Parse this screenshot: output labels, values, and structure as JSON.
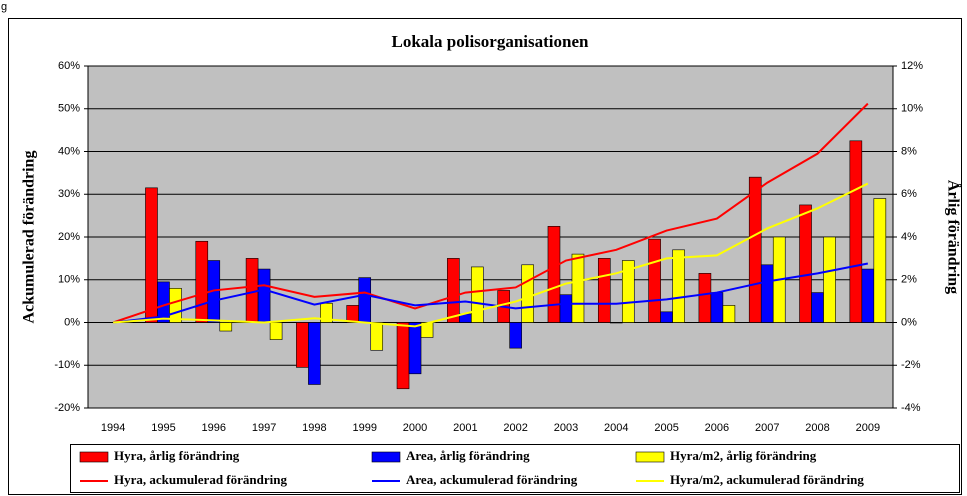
{
  "fragment": "g",
  "chart_data": {
    "type": "combo",
    "title": "Lokala polisorganisationen",
    "ylabel": "Ackumulerad förändring",
    "y2label": "Årlig förändring",
    "categories": [
      "1994",
      "1995",
      "1996",
      "1997",
      "1998",
      "1999",
      "2000",
      "2001",
      "2002",
      "2003",
      "2004",
      "2005",
      "2006",
      "2007",
      "2008",
      "2009"
    ],
    "ylim": [
      -20,
      60
    ],
    "yticks": [
      {
        "value": -20,
        "label": "-20%"
      },
      {
        "value": -10,
        "label": "-10%"
      },
      {
        "value": 0,
        "label": "0%"
      },
      {
        "value": 10,
        "label": "10%"
      },
      {
        "value": 20,
        "label": "20%"
      },
      {
        "value": 30,
        "label": "30%"
      },
      {
        "value": 40,
        "label": "40%"
      },
      {
        "value": 50,
        "label": "50%"
      },
      {
        "value": 60,
        "label": "60%"
      }
    ],
    "y2lim": [
      -4,
      12
    ],
    "y2ticks": [
      {
        "value": -4,
        "label": "-4%"
      },
      {
        "value": -2,
        "label": "-2%"
      },
      {
        "value": 0,
        "label": "0%"
      },
      {
        "value": 2,
        "label": "2%"
      },
      {
        "value": 4,
        "label": "4%"
      },
      {
        "value": 6,
        "label": "6%"
      },
      {
        "value": 8,
        "label": "8%"
      },
      {
        "value": 10,
        "label": "10%"
      },
      {
        "value": 12,
        "label": "12%"
      }
    ],
    "grid": true,
    "legend": "bottom",
    "series": [
      {
        "name": "Hyra, årlig förändring",
        "type": "bar",
        "axis": "y2",
        "color": "#ff0000",
        "values": [
          null,
          6.3,
          3.8,
          3.0,
          -2.1,
          0.8,
          -3.1,
          3.0,
          1.5,
          4.5,
          3.0,
          3.9,
          2.3,
          6.8,
          5.5,
          8.5
        ]
      },
      {
        "name": "Area, årlig förändring",
        "type": "bar",
        "axis": "y2",
        "color": "#0000ff",
        "values": [
          null,
          1.9,
          2.9,
          2.5,
          -2.9,
          2.1,
          -2.4,
          0.4,
          -1.2,
          1.3,
          0.0,
          0.5,
          1.4,
          2.7,
          1.4,
          2.5
        ]
      },
      {
        "name": "Hyra/m2, årlig förändring",
        "type": "bar",
        "axis": "y2",
        "color": "#ffff00",
        "values": [
          null,
          1.6,
          -0.4,
          -0.8,
          0.9,
          -1.3,
          -0.7,
          2.6,
          2.7,
          3.2,
          2.9,
          3.4,
          0.8,
          4.0,
          4.0,
          5.8
        ]
      },
      {
        "name": "Hyra, ackumulerad förändring",
        "type": "line",
        "color": "#ff0000",
        "values": [
          0,
          4,
          7.5,
          8.7,
          6,
          7,
          3.3,
          7,
          8.2,
          14.5,
          17,
          21.5,
          24.3,
          32.7,
          39.5,
          51.2
        ]
      },
      {
        "name": "Area, ackumulerad förändring",
        "type": "line",
        "color": "#0000ff",
        "values": [
          0,
          1.4,
          5.1,
          7.7,
          4.2,
          6.5,
          4,
          4.9,
          3.3,
          4.4,
          4.4,
          5.4,
          7,
          9.6,
          11.5,
          13.8
        ]
      },
      {
        "name": "Hyra/m2, ackumulerad förändring",
        "type": "line",
        "color": "#ffff00",
        "values": [
          0,
          0.9,
          0.5,
          0,
          1,
          0,
          -0.9,
          2.1,
          4.9,
          9.1,
          11.5,
          15,
          15.7,
          22,
          26.7,
          32.5
        ]
      }
    ]
  }
}
